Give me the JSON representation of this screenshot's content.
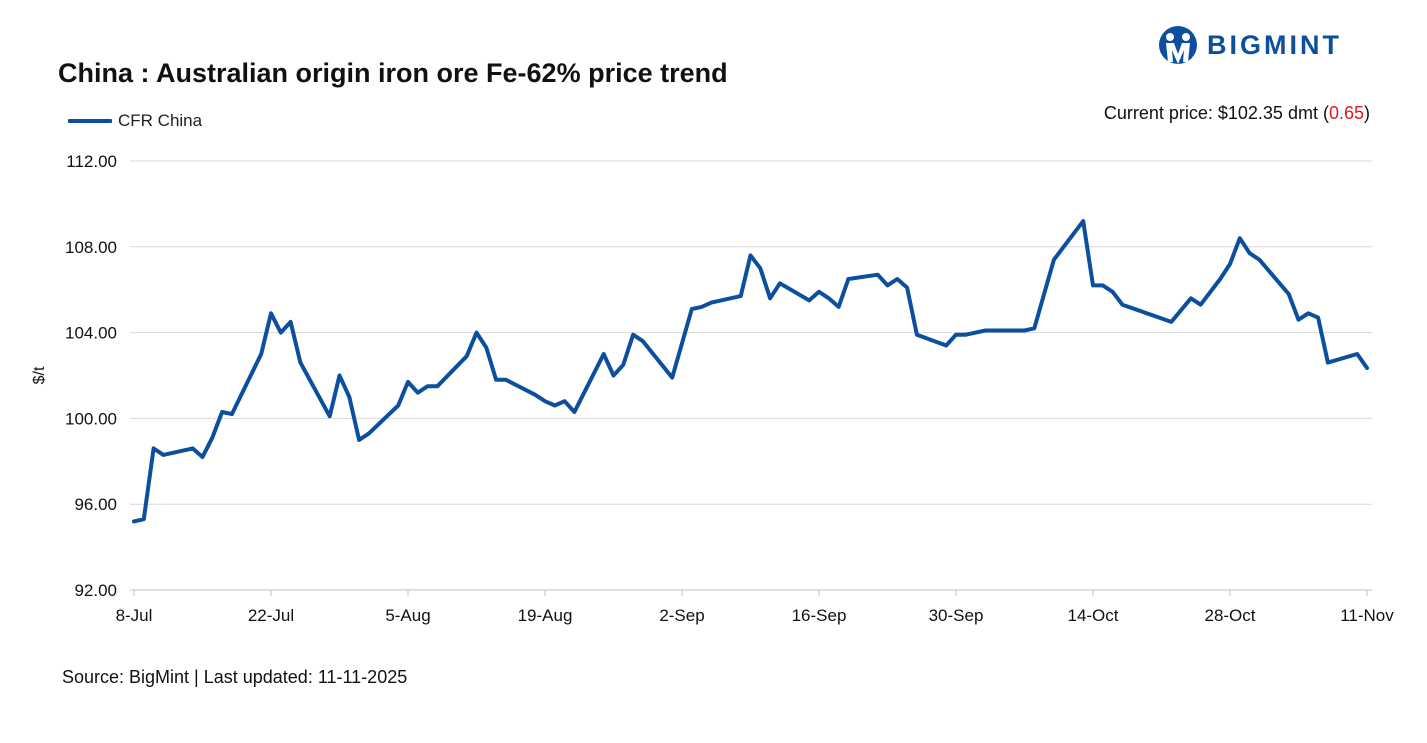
{
  "header": {
    "title": "China : Australian origin iron ore Fe-62% price trend",
    "brand": "BIGMINT",
    "current_price_label": "Current price: $102.35 dmt (",
    "current_price_change": "0.65",
    "current_price_close": ")"
  },
  "footer": {
    "source": "Source: BigMint | Last updated: 11-11-2025"
  },
  "colors": {
    "line": "#0b4f9e",
    "grid": "#d9d9d9",
    "change": "#e01b1b"
  },
  "chart_data": {
    "type": "line",
    "title": "China : Australian origin iron ore Fe-62% price trend",
    "ylabel": "$/t",
    "xlabel": "",
    "ylim": [
      92,
      112
    ],
    "yticks": [
      "92.00",
      "96.00",
      "100.00",
      "104.00",
      "108.00",
      "112.00"
    ],
    "xticks": [
      "8-Jul",
      "22-Jul",
      "5-Aug",
      "19-Aug",
      "2-Sep",
      "16-Sep",
      "30-Sep",
      "14-Oct",
      "28-Oct",
      "11-Nov"
    ],
    "grid": true,
    "legend": "top-left",
    "series": [
      {
        "name": "CFR China",
        "points": [
          [
            "2025-07-08",
            95.2
          ],
          [
            "2025-07-09",
            95.3
          ],
          [
            "2025-07-10",
            98.6
          ],
          [
            "2025-07-11",
            98.3
          ],
          [
            "2025-07-14",
            98.6
          ],
          [
            "2025-07-15",
            98.2
          ],
          [
            "2025-07-16",
            99.1
          ],
          [
            "2025-07-17",
            100.3
          ],
          [
            "2025-07-18",
            100.2
          ],
          [
            "2025-07-21",
            103.0
          ],
          [
            "2025-07-22",
            104.9
          ],
          [
            "2025-07-23",
            104.0
          ],
          [
            "2025-07-24",
            104.5
          ],
          [
            "2025-07-25",
            102.6
          ],
          [
            "2025-07-28",
            100.1
          ],
          [
            "2025-07-29",
            102.0
          ],
          [
            "2025-07-30",
            101.0
          ],
          [
            "2025-07-31",
            99.0
          ],
          [
            "2025-08-01",
            99.3
          ],
          [
            "2025-08-04",
            100.6
          ],
          [
            "2025-08-05",
            101.7
          ],
          [
            "2025-08-06",
            101.2
          ],
          [
            "2025-08-07",
            101.5
          ],
          [
            "2025-08-08",
            101.5
          ],
          [
            "2025-08-11",
            102.9
          ],
          [
            "2025-08-12",
            104.0
          ],
          [
            "2025-08-13",
            103.3
          ],
          [
            "2025-08-14",
            101.8
          ],
          [
            "2025-08-15",
            101.8
          ],
          [
            "2025-08-18",
            101.1
          ],
          [
            "2025-08-19",
            100.8
          ],
          [
            "2025-08-20",
            100.6
          ],
          [
            "2025-08-21",
            100.8
          ],
          [
            "2025-08-22",
            100.3
          ],
          [
            "2025-08-25",
            103.0
          ],
          [
            "2025-08-26",
            102.0
          ],
          [
            "2025-08-27",
            102.5
          ],
          [
            "2025-08-28",
            103.9
          ],
          [
            "2025-08-29",
            103.6
          ],
          [
            "2025-09-01",
            101.9
          ],
          [
            "2025-09-02",
            103.5
          ],
          [
            "2025-09-03",
            105.1
          ],
          [
            "2025-09-04",
            105.2
          ],
          [
            "2025-09-05",
            105.4
          ],
          [
            "2025-09-08",
            105.7
          ],
          [
            "2025-09-09",
            107.6
          ],
          [
            "2025-09-10",
            107.0
          ],
          [
            "2025-09-11",
            105.6
          ],
          [
            "2025-09-12",
            106.3
          ],
          [
            "2025-09-15",
            105.5
          ],
          [
            "2025-09-16",
            105.9
          ],
          [
            "2025-09-17",
            105.6
          ],
          [
            "2025-09-18",
            105.2
          ],
          [
            "2025-09-19",
            106.5
          ],
          [
            "2025-09-22",
            106.7
          ],
          [
            "2025-09-23",
            106.2
          ],
          [
            "2025-09-24",
            106.5
          ],
          [
            "2025-09-25",
            106.1
          ],
          [
            "2025-09-26",
            103.9
          ],
          [
            "2025-09-29",
            103.4
          ],
          [
            "2025-09-30",
            103.9
          ],
          [
            "2025-10-01",
            103.9
          ],
          [
            "2025-10-03",
            104.1
          ],
          [
            "2025-10-07",
            104.1
          ],
          [
            "2025-10-08",
            104.2
          ],
          [
            "2025-10-10",
            107.4
          ],
          [
            "2025-10-13",
            109.2
          ],
          [
            "2025-10-14",
            106.2
          ],
          [
            "2025-10-15",
            106.2
          ],
          [
            "2025-10-16",
            105.9
          ],
          [
            "2025-10-17",
            105.3
          ],
          [
            "2025-10-22",
            104.5
          ],
          [
            "2025-10-24",
            105.6
          ],
          [
            "2025-10-25",
            105.3
          ],
          [
            "2025-10-27",
            106.5
          ],
          [
            "2025-10-28",
            107.2
          ],
          [
            "2025-10-29",
            108.4
          ],
          [
            "2025-10-30",
            107.7
          ],
          [
            "2025-10-31",
            107.4
          ],
          [
            "2025-11-03",
            105.8
          ],
          [
            "2025-11-04",
            104.6
          ],
          [
            "2025-11-05",
            104.9
          ],
          [
            "2025-11-06",
            104.7
          ],
          [
            "2025-11-07",
            102.6
          ],
          [
            "2025-11-10",
            103.0
          ],
          [
            "2025-11-11",
            102.35
          ]
        ]
      }
    ]
  }
}
